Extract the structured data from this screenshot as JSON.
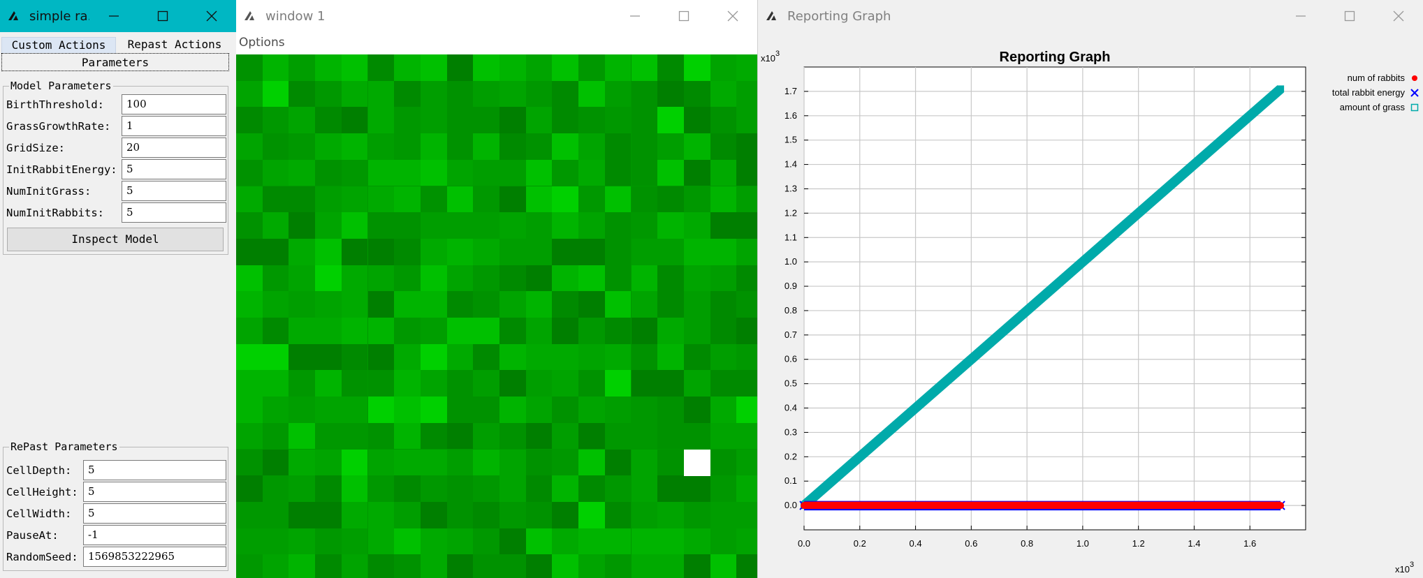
{
  "left_window": {
    "title": "simple ra...",
    "tabs": [
      "Custom Actions",
      "Repast Actions"
    ],
    "parameters_button": "Parameters",
    "model_parameters": {
      "legend": "Model Parameters",
      "fields": [
        {
          "label": "BirthThreshold:",
          "value": "100"
        },
        {
          "label": "GrassGrowthRate:",
          "value": "1"
        },
        {
          "label": "GridSize:",
          "value": "20"
        },
        {
          "label": "InitRabbitEnergy:",
          "value": "5"
        },
        {
          "label": "NumInitGrass:",
          "value": "5"
        },
        {
          "label": "NumInitRabbits:",
          "value": "5"
        }
      ],
      "inspect_button": "Inspect Model"
    },
    "repast_parameters": {
      "legend": "RePast Parameters",
      "fields": [
        {
          "label": "CellDepth:",
          "value": "5"
        },
        {
          "label": "CellHeight:",
          "value": "5"
        },
        {
          "label": "CellWidth:",
          "value": "5"
        },
        {
          "label": "PauseAt:",
          "value": "-1"
        },
        {
          "label": "RandomSeed:",
          "value": "1569853222965"
        }
      ]
    }
  },
  "grid_window": {
    "title": "window 1",
    "menu": "Options",
    "rabbit_cell": {
      "col": 17,
      "row": 15
    },
    "colors": {
      "grass_base": "#009800",
      "rabbit": "#ffffff"
    }
  },
  "graph_window": {
    "title": "Reporting Graph",
    "icons": [
      "app-icon",
      "minimize-icon",
      "maximize-icon",
      "close-icon"
    ]
  },
  "chart_data": {
    "type": "line",
    "title": "Reporting Graph",
    "x_multiplier": "x10^3",
    "y_multiplier": "x10^3",
    "xlim": [
      0,
      1.8
    ],
    "ylim": [
      -0.1,
      1.8
    ],
    "xticks": [
      "0.0",
      "0.2",
      "0.4",
      "0.6",
      "0.8",
      "1.0",
      "1.2",
      "1.4",
      "1.6"
    ],
    "yticks": [
      "0.0",
      "0.1",
      "0.2",
      "0.3",
      "0.4",
      "0.5",
      "0.6",
      "0.7",
      "0.8",
      "0.9",
      "1.0",
      "1.1",
      "1.2",
      "1.3",
      "1.4",
      "1.5",
      "1.6",
      "1.7"
    ],
    "grid": true,
    "legend_position": "top-right",
    "series": [
      {
        "name": "num of rabbits",
        "color": "#ff0000",
        "marker": "circle",
        "x": [
          0,
          1.71
        ],
        "y": [
          0,
          0
        ]
      },
      {
        "name": "total rabbit energy",
        "color": "#0000ff",
        "marker": "x",
        "x": [
          0,
          1.71
        ],
        "y": [
          0,
          0
        ]
      },
      {
        "name": "amount of grass",
        "color": "#00aaaa",
        "marker": "square",
        "x": [
          0,
          1.71
        ],
        "y": [
          0,
          1.71
        ]
      }
    ]
  }
}
